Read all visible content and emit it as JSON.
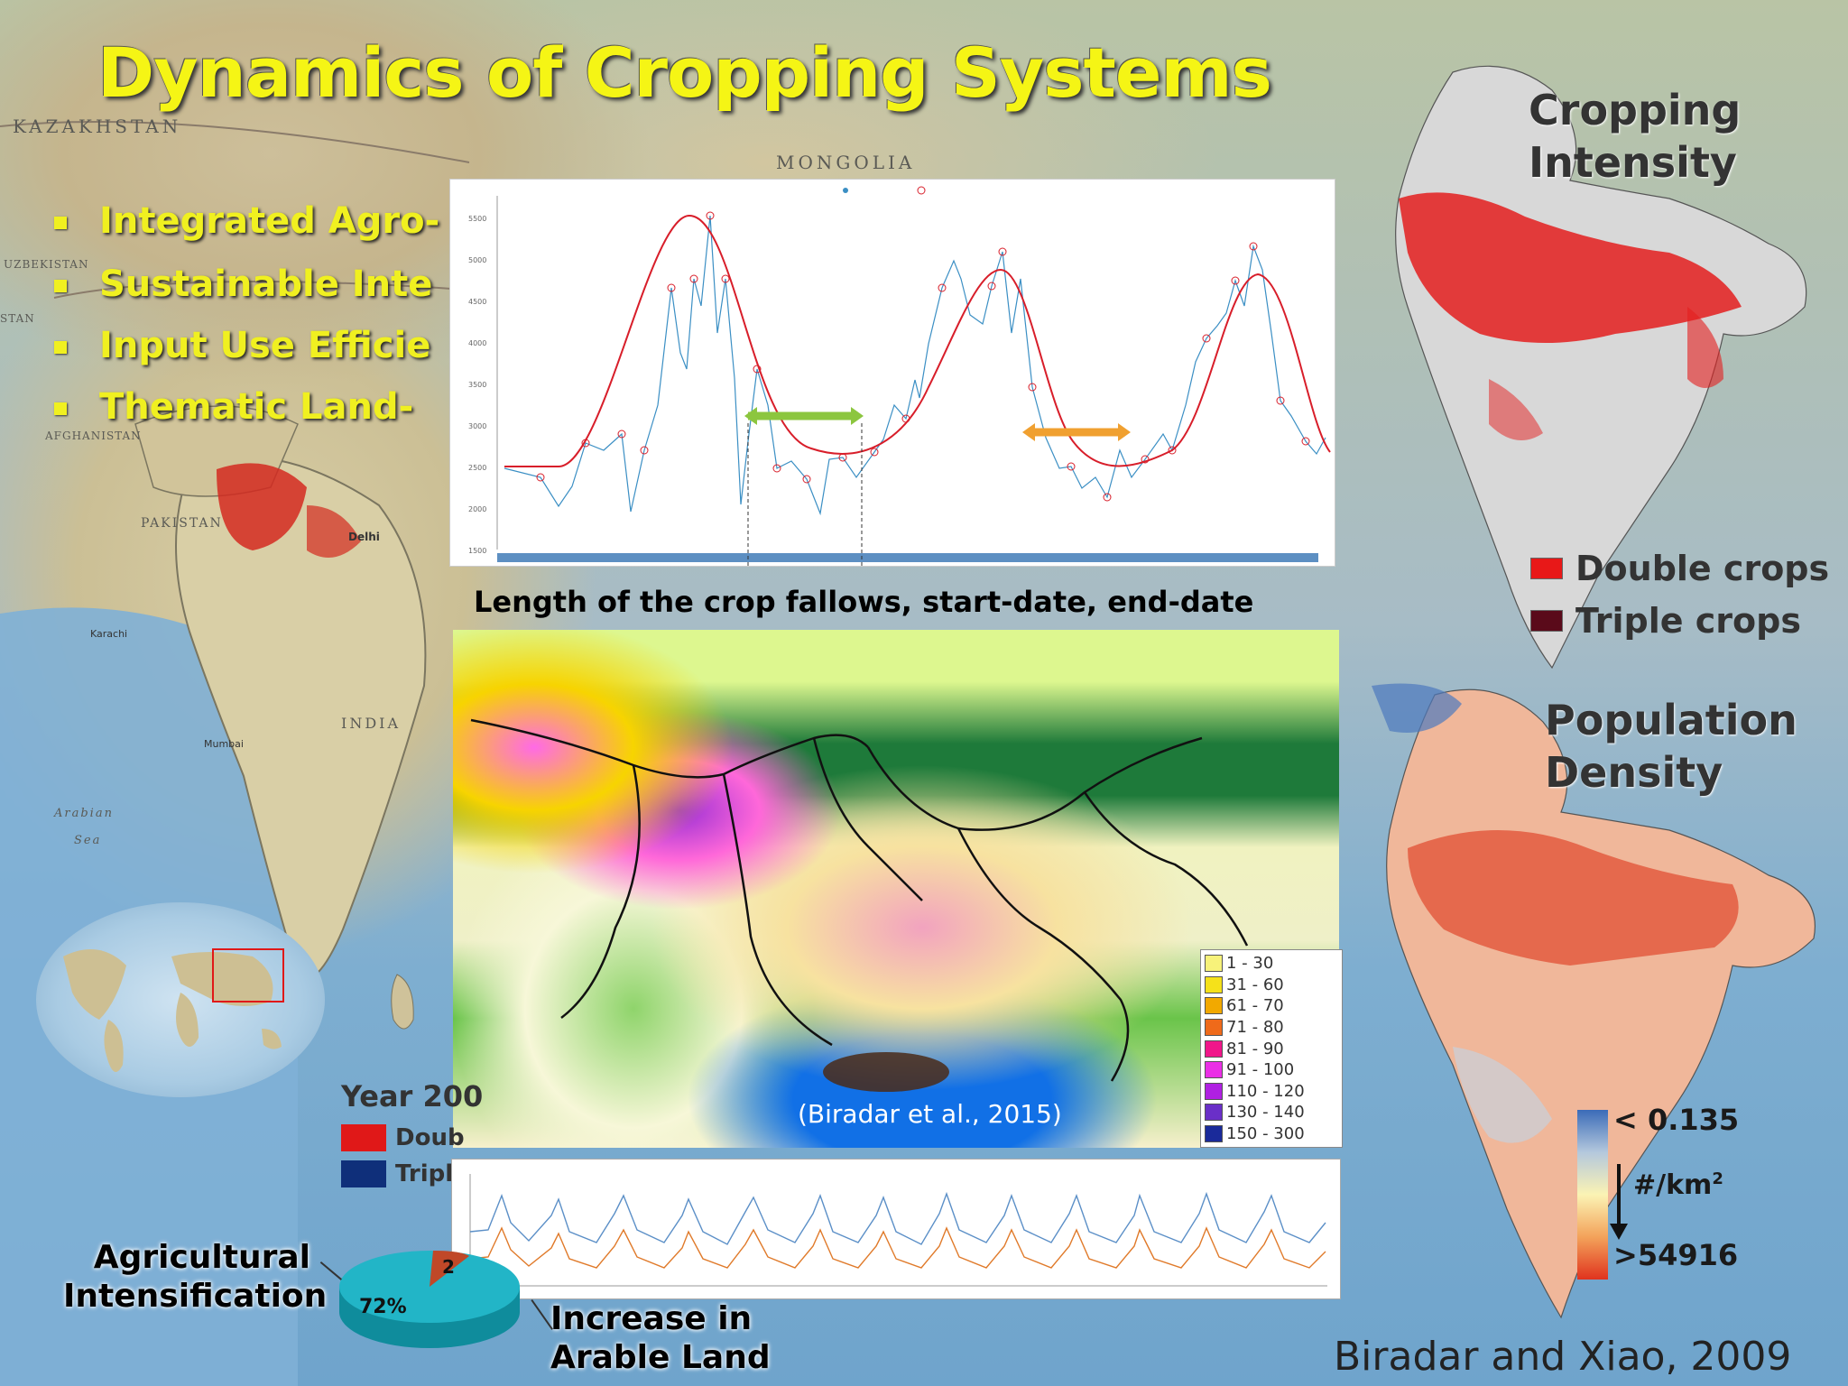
{
  "title": "Dynamics of Cropping Systems",
  "bullets": [
    "Integrated Agro-",
    "Sustainable Inte",
    "Input Use Efficie",
    "Thematic  Land-"
  ],
  "geo_labels": {
    "kazakhstan": "KAZAKHSTAN",
    "mongolia": "MONGOLIA",
    "uzbekistan": "UZBEKISTAN",
    "stan": "STAN",
    "afghanistan": "AFGHANISTAN",
    "pakistan": "PAKISTAN",
    "india": "INDIA",
    "arabian": "Arabian",
    "sea": "Sea",
    "delhi": "Delhi",
    "mumbai": "Mumbai",
    "karachi": "Karachi"
  },
  "time_series_caption": "Length of the crop fallows, start-date, end-date",
  "fallow_map_credit": "(Biradar et al., 2015)",
  "fallow_legend": [
    {
      "label": "1 - 30",
      "color": "#f7f27a"
    },
    {
      "label": "31 - 60",
      "color": "#f5e11a"
    },
    {
      "label": "61 - 70",
      "color": "#f2a900"
    },
    {
      "label": "71 - 80",
      "color": "#ef6a1a"
    },
    {
      "label": "81 - 90",
      "color": "#f0168a"
    },
    {
      "label": "91 - 100",
      "color": "#ea2fe6"
    },
    {
      "label": "110 - 120",
      "color": "#b020e2"
    },
    {
      "label": "130 - 140",
      "color": "#6a2fc8"
    },
    {
      "label": "150 - 300",
      "color": "#1a2a9a"
    }
  ],
  "cropping_intensity": {
    "title_line1": "Cropping",
    "title_line2": "Intensity",
    "legend": [
      {
        "label": "Double crops",
        "color": "#e81818"
      },
      {
        "label": "Triple crops",
        "color": "#5a0a1a"
      }
    ]
  },
  "population_density": {
    "title_line1": "Population",
    "title_line2": "Density",
    "max_label": "< 0.135",
    "unit_label": "#/km",
    "unit_sup": "2",
    "min_label": ">54916"
  },
  "credit_main": "Biradar and Xiao, 2009",
  "year_panel": {
    "label": "Year 200",
    "legend": [
      {
        "label": "Doub",
        "color": "#e01818"
      },
      {
        "label": "Tripl",
        "color": "#0f2f7a"
      }
    ]
  },
  "pie": {
    "pct_label": "72%",
    "small_label": "2"
  },
  "agri_label_line1": "Agricultural",
  "agri_label_line2": "Intensification",
  "arable_label_line1": "Increase in",
  "arable_label_line2": "Arable Land",
  "colors": {
    "title_yellow": "#f5f515",
    "ts_fit_red": "#d81e2a",
    "ts_raw_blue": "#3b8fc4",
    "green_arrow": "#8cc63f",
    "orange_arrow": "#f0a030"
  }
}
